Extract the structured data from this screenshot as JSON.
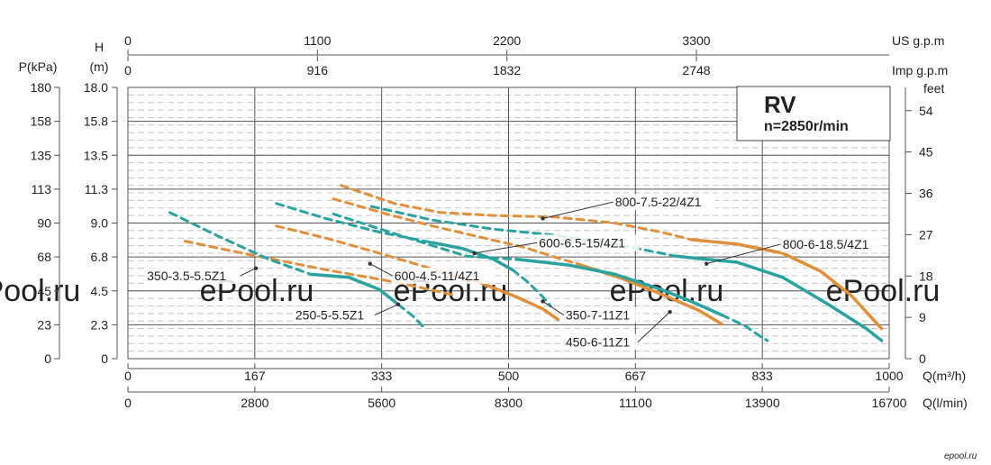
{
  "chart_data": {
    "type": "line",
    "title": "RV",
    "subtitle": "n=2850r/min",
    "axes": {
      "x_bottom": {
        "label": "Q(m³/h)",
        "ticks": [
          "0",
          "167",
          "333",
          "500",
          "667",
          "833",
          "1000"
        ],
        "range": [
          0,
          1000
        ]
      },
      "x_bottom2": {
        "label": "Q(l/min)",
        "ticks": [
          "0",
          "2800",
          "5600",
          "8300",
          "11100",
          "13900",
          "16700"
        ]
      },
      "x_top1": {
        "label": "US g.p.m",
        "ticks": [
          "0",
          "1100",
          "2200",
          "3300"
        ]
      },
      "x_top2": {
        "label": "Imp g.p.m",
        "ticks": [
          "0",
          "916",
          "1832",
          "2748"
        ]
      },
      "y_left_m": {
        "label": "H",
        "unit": "(m)",
        "ticks": [
          "0",
          "2.3",
          "4.5",
          "6.8",
          "9.0",
          "11.3",
          "13.5",
          "15.8",
          "18.0"
        ],
        "range": [
          0,
          18
        ]
      },
      "y_left_kpa": {
        "label": "P(kPa)",
        "ticks": [
          "0",
          "23",
          "45",
          "68",
          "90",
          "113",
          "135",
          "158",
          "180"
        ]
      },
      "y_right": {
        "label": "feet",
        "ticks": [
          "0",
          "9",
          "18",
          "27",
          "36",
          "45",
          "54"
        ]
      }
    },
    "grid": true,
    "series": [
      {
        "name": "350-3.5-5.5Z1",
        "color": "#e0903a",
        "dashed": [
          [
            75,
            7.8
          ],
          [
            150,
            7.0
          ],
          [
            260,
            5.9
          ],
          [
            360,
            5.0
          ],
          [
            430,
            4.2
          ]
        ],
        "solid": []
      },
      {
        "name": "250-5-5.5Z1",
        "color": "#2aa3a0",
        "dashed": [
          [
            55,
            9.7
          ],
          [
            120,
            8.1
          ],
          [
            185,
            6.6
          ],
          [
            240,
            5.6
          ]
        ],
        "solid": [
          [
            240,
            5.6
          ],
          [
            290,
            5.4
          ],
          [
            330,
            4.6
          ],
          [
            355,
            3.6
          ]
        ],
        "dashed_tail": [
          [
            355,
            3.6
          ],
          [
            375,
            2.8
          ],
          [
            390,
            2.0
          ]
        ]
      },
      {
        "name": "600-4.5-11/4Z1",
        "color": "#e0903a",
        "dashed": [
          [
            195,
            8.8
          ],
          [
            260,
            8.0
          ],
          [
            330,
            7.0
          ],
          [
            390,
            6.1
          ],
          [
            410,
            5.8
          ]
        ],
        "solid": [
          [
            410,
            5.8
          ],
          [
            460,
            5.1
          ],
          [
            510,
            4.1
          ],
          [
            545,
            3.3
          ],
          [
            565,
            2.6
          ]
        ]
      },
      {
        "name": "600-6.5-15/4Z1",
        "color": "#2aa3a0",
        "dashed": [
          [
            195,
            10.3
          ],
          [
            260,
            9.3
          ],
          [
            330,
            8.4
          ],
          [
            390,
            7.8
          ],
          [
            400,
            7.7
          ]
        ],
        "solid": [
          [
            400,
            7.7
          ],
          [
            440,
            7.3
          ],
          [
            480,
            6.6
          ],
          [
            505,
            5.9
          ]
        ],
        "dashed_tail": [
          [
            505,
            5.9
          ],
          [
            525,
            5.1
          ],
          [
            545,
            4.1
          ],
          [
            555,
            3.5
          ]
        ]
      },
      {
        "name": "350-7-11Z1",
        "color": "#e0903a",
        "dashed": [
          [
            270,
            10.6
          ],
          [
            340,
            9.6
          ],
          [
            400,
            8.8
          ],
          [
            460,
            8.1
          ],
          [
            520,
            7.4
          ],
          [
            570,
            6.6
          ],
          [
            590,
            6.3
          ]
        ],
        "solid": [
          [
            590,
            6.3
          ],
          [
            650,
            5.3
          ],
          [
            700,
            4.3
          ],
          [
            750,
            3.2
          ],
          [
            780,
            2.3
          ]
        ]
      },
      {
        "name": "450-6-11Z1",
        "color": "#2aa3a0",
        "dashed": [
          [
            270,
            9.6
          ],
          [
            350,
            8.3
          ],
          [
            400,
            7.5
          ],
          [
            445,
            6.8
          ],
          [
            510,
            6.6
          ]
        ],
        "solid": [
          [
            510,
            6.6
          ],
          [
            580,
            6.2
          ],
          [
            640,
            5.6
          ],
          [
            700,
            4.6
          ],
          [
            740,
            3.8
          ],
          [
            780,
            2.9
          ]
        ],
        "dashed_tail": [
          [
            780,
            2.9
          ],
          [
            810,
            2.2
          ],
          [
            830,
            1.5
          ],
          [
            840,
            1.2
          ]
        ]
      },
      {
        "name": "800-6-18.5/4Z1",
        "color": "#2aa3a0",
        "dashed": [
          [
            320,
            10.1
          ],
          [
            400,
            9.2
          ],
          [
            480,
            8.6
          ],
          [
            560,
            8.2
          ],
          [
            640,
            7.6
          ],
          [
            700,
            7.0
          ],
          [
            720,
            6.8
          ]
        ],
        "solid": [
          [
            720,
            6.8
          ],
          [
            800,
            6.4
          ],
          [
            860,
            5.4
          ],
          [
            920,
            3.6
          ],
          [
            970,
            2.0
          ],
          [
            990,
            1.2
          ]
        ]
      },
      {
        "name": "800-7.5-22/4Z1",
        "color": "#e0903a",
        "dashed": [
          [
            280,
            11.5
          ],
          [
            350,
            10.3
          ],
          [
            410,
            9.7
          ],
          [
            480,
            9.5
          ],
          [
            560,
            9.4
          ],
          [
            640,
            9.0
          ],
          [
            700,
            8.4
          ],
          [
            740,
            7.9
          ]
        ],
        "solid": [
          [
            740,
            7.9
          ],
          [
            800,
            7.6
          ],
          [
            860,
            7.0
          ],
          [
            910,
            5.8
          ],
          [
            950,
            4.2
          ],
          [
            990,
            2.0
          ]
        ]
      }
    ],
    "labels": [
      {
        "text": "800-7.5-22/4Z1",
        "x": 640,
        "y": 10.1
      },
      {
        "text": "600-6.5-15/4Z1",
        "x": 540,
        "y": 7.4
      },
      {
        "text": "800-6-18.5/4Z1",
        "x": 860,
        "y": 7.3
      },
      {
        "text": "350-3.5-5.5Z1",
        "x": 25,
        "y": 5.2
      },
      {
        "text": "600-4.5-11/4Z1",
        "x": 350,
        "y": 5.2
      },
      {
        "text": "250-5-5.5Z1",
        "x": 220,
        "y": 2.6
      },
      {
        "text": "350-7-11Z1",
        "x": 575,
        "y": 2.6
      },
      {
        "text": "450-6-11Z1",
        "x": 575,
        "y": 0.8
      }
    ]
  },
  "watermark": "ePool.ru",
  "credit": "epool.ru"
}
